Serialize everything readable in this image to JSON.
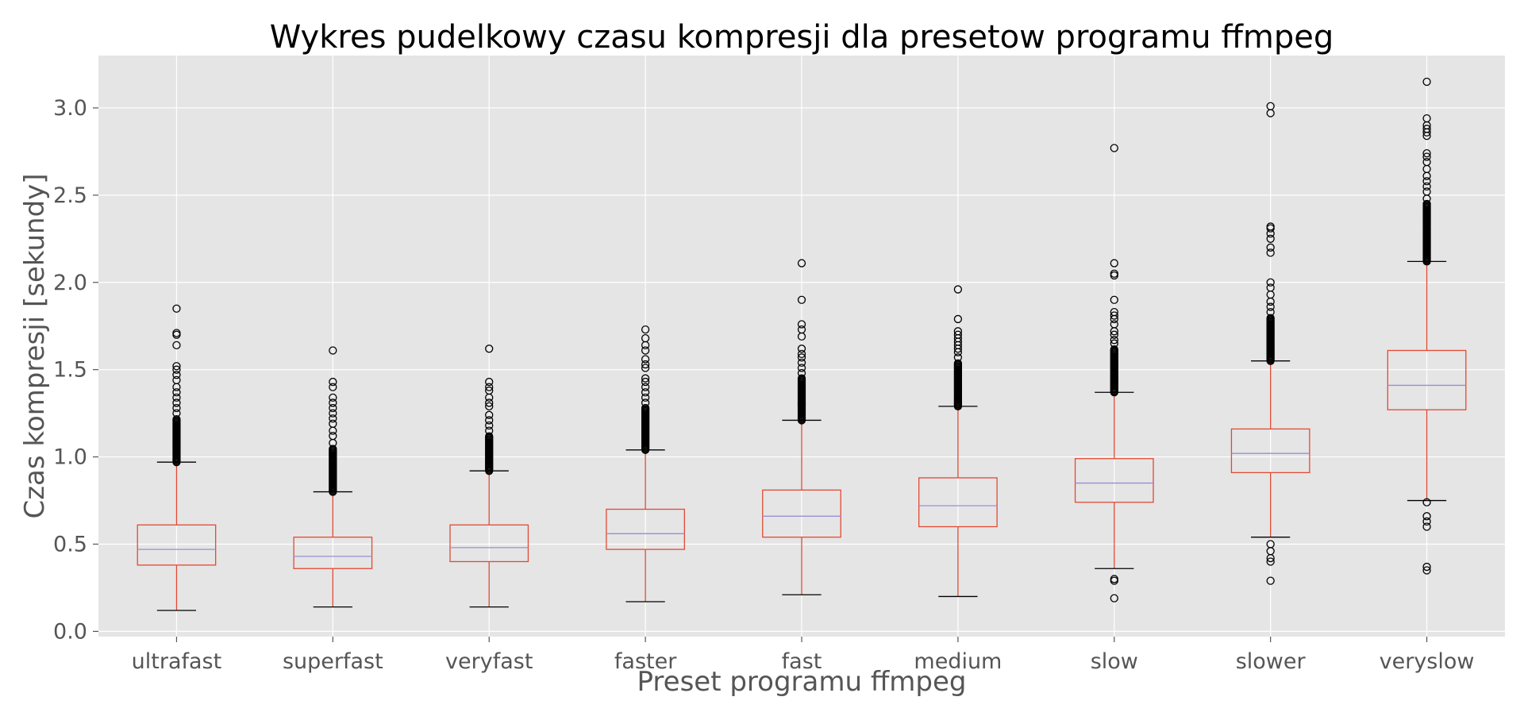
{
  "chart_data": {
    "type": "box",
    "title": "Wykres pudelkowy czasu kompresji dla presetow programu ffmpeg",
    "xlabel": "Preset programu ffmpeg",
    "ylabel": "Czas kompresji [sekundy]",
    "ylim": [
      -0.03,
      3.3
    ],
    "yticks": [
      "0.0",
      "0.5",
      "1.0",
      "1.5",
      "2.0",
      "2.5",
      "3.0"
    ],
    "grid": true,
    "colors": {
      "background": "#e5e5e5",
      "grid": "#ffffff",
      "box": "#e24a33",
      "median": "#8eba42",
      "median_alt": "#988ed5",
      "whisker_cap": "#000000",
      "outlier": "#000000"
    },
    "categories": [
      "ultrafast",
      "superfast",
      "veryfast",
      "faster",
      "fast",
      "medium",
      "slow",
      "slower",
      "veryslow"
    ],
    "boxes": [
      {
        "name": "ultrafast",
        "whislo": 0.12,
        "q1": 0.38,
        "med": 0.47,
        "q3": 0.61,
        "whishi": 0.97,
        "fliers_dense": [
          0.97,
          1.22
        ],
        "fliers": [
          1.25,
          1.28,
          1.31,
          1.34,
          1.37,
          1.4,
          1.44,
          1.47,
          1.5,
          1.52,
          1.64,
          1.7,
          1.71,
          1.85
        ]
      },
      {
        "name": "superfast",
        "whislo": 0.14,
        "q1": 0.36,
        "med": 0.43,
        "q3": 0.54,
        "whishi": 0.8,
        "fliers_dense": [
          0.8,
          1.05
        ],
        "fliers": [
          1.08,
          1.12,
          1.15,
          1.19,
          1.22,
          1.25,
          1.28,
          1.31,
          1.34,
          1.4,
          1.43,
          1.61
        ]
      },
      {
        "name": "veryfast",
        "whislo": 0.14,
        "q1": 0.4,
        "med": 0.48,
        "q3": 0.61,
        "whishi": 0.92,
        "fliers_dense": [
          0.92,
          1.12
        ],
        "fliers": [
          1.15,
          1.18,
          1.21,
          1.24,
          1.29,
          1.31,
          1.34,
          1.38,
          1.4,
          1.43,
          1.62
        ]
      },
      {
        "name": "faster",
        "whislo": 0.17,
        "q1": 0.47,
        "med": 0.56,
        "q3": 0.7,
        "whishi": 1.04,
        "fliers_dense": [
          1.04,
          1.28
        ],
        "fliers": [
          1.31,
          1.34,
          1.37,
          1.4,
          1.43,
          1.45,
          1.51,
          1.53,
          1.56,
          1.61,
          1.64,
          1.68,
          1.73
        ]
      },
      {
        "name": "fast",
        "whislo": 0.21,
        "q1": 0.54,
        "med": 0.66,
        "q3": 0.81,
        "whishi": 1.21,
        "fliers_dense": [
          1.21,
          1.45
        ],
        "fliers": [
          1.48,
          1.51,
          1.54,
          1.57,
          1.59,
          1.62,
          1.69,
          1.73,
          1.76,
          1.9,
          2.11
        ]
      },
      {
        "name": "medium",
        "whislo": 0.2,
        "q1": 0.6,
        "med": 0.72,
        "q3": 0.88,
        "whishi": 1.29,
        "fliers_dense": [
          1.29,
          1.54
        ],
        "fliers": [
          1.57,
          1.6,
          1.62,
          1.64,
          1.66,
          1.68,
          1.7,
          1.72,
          1.79,
          1.96
        ]
      },
      {
        "name": "slow",
        "whislo": 0.36,
        "q1": 0.74,
        "med": 0.85,
        "q3": 0.99,
        "whishi": 1.37,
        "fliers_dense": [
          1.37,
          1.62
        ],
        "fliers": [
          0.3,
          0.29,
          0.19,
          1.65,
          1.67,
          1.7,
          1.72,
          1.76,
          1.79,
          1.81,
          1.83,
          1.9,
          2.04,
          2.05,
          2.11,
          2.77
        ]
      },
      {
        "name": "slower",
        "whislo": 0.54,
        "q1": 0.91,
        "med": 1.02,
        "q3": 1.16,
        "whishi": 1.55,
        "fliers_dense": [
          1.55,
          1.8
        ],
        "fliers": [
          0.5,
          0.46,
          0.42,
          0.4,
          0.29,
          1.83,
          1.86,
          1.89,
          1.93,
          1.97,
          2.0,
          2.17,
          2.2,
          2.25,
          2.28,
          2.31,
          2.32,
          2.97,
          3.01
        ]
      },
      {
        "name": "veryslow",
        "whislo": 0.75,
        "q1": 1.27,
        "med": 1.41,
        "q3": 1.61,
        "whishi": 2.12,
        "fliers_dense": [
          2.12,
          2.45
        ],
        "fliers": [
          0.74,
          0.66,
          0.63,
          0.6,
          0.37,
          0.35,
          2.48,
          2.52,
          2.55,
          2.58,
          2.61,
          2.65,
          2.69,
          2.72,
          2.74,
          2.84,
          2.86,
          2.88,
          2.9,
          2.94,
          3.15
        ]
      }
    ]
  }
}
